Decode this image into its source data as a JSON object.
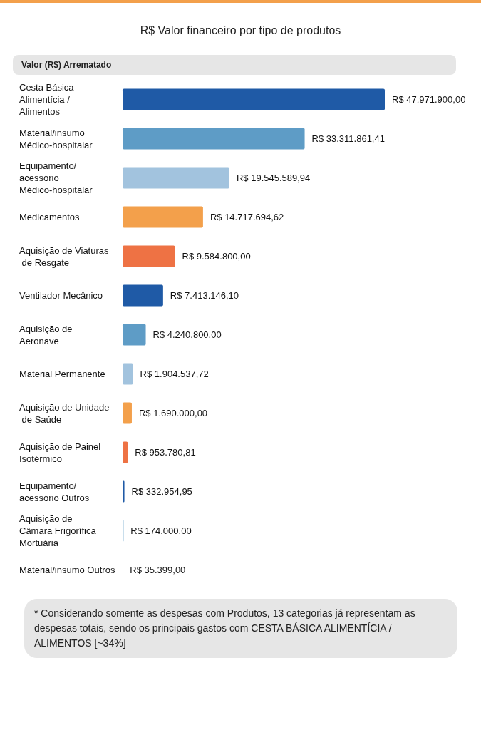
{
  "chart_data": {
    "type": "bar",
    "orientation": "horizontal",
    "title": "R$ Valor financeiro por tipo de produtos",
    "subtitle": "Valor (R$) Arrematado",
    "categories": [
      "Cesta Básica Alimentícia / Alimentos",
      "Material/insumo Médico-hospitalar",
      "Equipamento/acessório Médico-hospitalar",
      "Medicamentos",
      "Aquisição de Viaturas de Resgate",
      "Ventilador Mecânico",
      "Aquisição de Aeronave",
      "Material Permanente",
      "Aquisição de Unidade de Saúde",
      "Aquisição de Painel Isotérmico",
      "Equipamento/ acessório Outros",
      "Aquisição de Câmara Frigorífica Mortuária",
      "Material/insumo Outros"
    ],
    "values": [
      47971900.0,
      33311861.41,
      19545589.94,
      14717694.62,
      9584800.0,
      7413146.1,
      4240800.0,
      1904537.72,
      1690000.0,
      953780.81,
      332954.95,
      174000.0,
      35399.0
    ],
    "colors": [
      "#1f5aa6",
      "#5e9cc6",
      "#a2c3de",
      "#f3a04b",
      "#ee7244",
      "#1f5aa6",
      "#5e9cc6",
      "#a2c3de",
      "#f3a04b",
      "#ee7244",
      "#1f5aa6",
      "#5e9cc6",
      "#a2c3de"
    ],
    "value_labels": [
      "R$ 47.971.900,00",
      "R$ 33.311.861,41",
      "R$ 19.545.589,94",
      "R$ 14.717.694,62",
      "R$ 9.584.800,00",
      "R$ 7.413.146,10",
      "R$ 4.240.800,00",
      "R$ 1.904.537,72",
      "R$ 1.690.000,00",
      "R$ 953.780,81",
      "R$ 332.954,95",
      "R$ 174.000,00",
      "R$ 35.399,00"
    ],
    "annotations": [
      "* Considerando somente as despesas com Produtos, 13 categorias já representam as despesas totais, sendo os principais gastos com CESTA BÁSICA ALIMENTÍCIA / ALIMENTOS [~34%]"
    ]
  }
}
